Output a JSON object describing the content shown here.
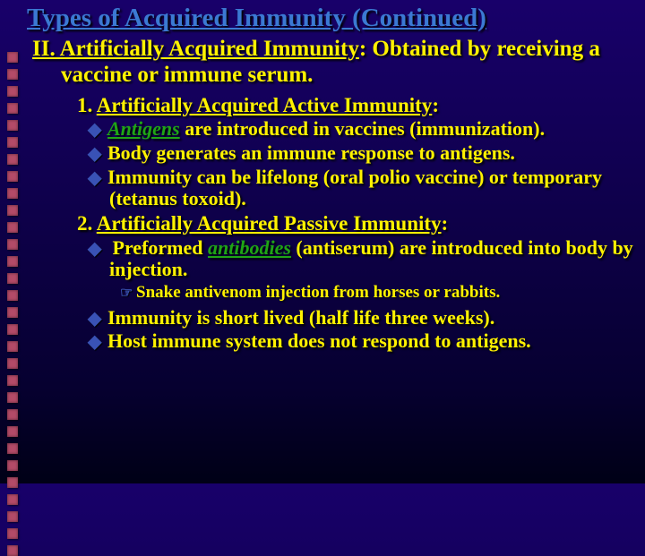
{
  "title": "Types of Acquired Immunity (Continued)",
  "section": {
    "head_underlined": "II. Artificially Acquired Immunity",
    "head_rest": ":  Obtained by receiving a vaccine or immune serum."
  },
  "items": {
    "n1_label": "1.  ",
    "n1_u": "Artificially Acquired Active Immunity",
    "n1_after": ":",
    "n1_b1_pre": "",
    "n1_b1_green": "Antigens",
    "n1_b1_rest": " are introduced in vaccines (immunization).",
    "n1_b2": "Body generates an immune response to antigens.",
    "n1_b3": "Immunity can be lifelong (oral polio vaccine) or temporary (tetanus toxoid).",
    "n2_label": "2.  ",
    "n2_u": "Artificially Acquired Passive Immunity",
    "n2_after": ":",
    "n2_b1_pre": " Preformed ",
    "n2_b1_green": "antibodies",
    "n2_b1_rest": " (antiserum) are introduced into body by injection.",
    "n2_b1_sub": "Snake antivenom injection from horses or rabbits.",
    "n2_b2": "Immunity is short lived (half life three weeks).",
    "n2_b3": "Host immune system does not respond to antigens."
  },
  "style": {
    "left_dot_color": "#b34b68",
    "title_color": "#3b79d3",
    "text_color": "#fff200",
    "bullet_color": "#3952b5",
    "highlight_color": "#1fa515",
    "bg_top": "#18006a",
    "bg_bottom": "#000016",
    "left_dot_count": 30
  }
}
